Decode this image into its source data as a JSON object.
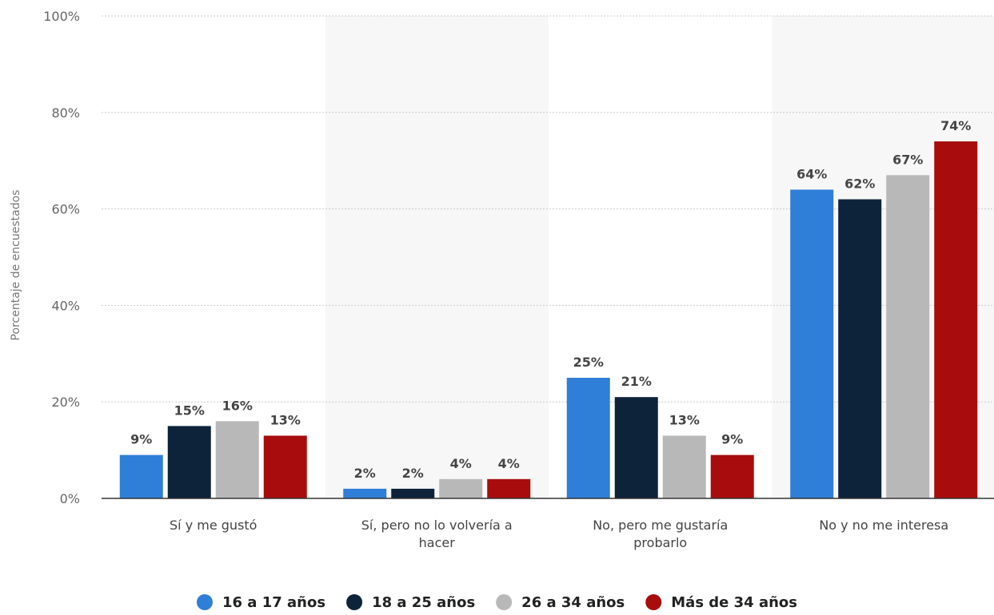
{
  "chart_data": {
    "type": "bar",
    "ylabel": "Porcentaje de encuestados",
    "xlabel": "",
    "ylim": [
      0,
      100
    ],
    "yticks": [
      "0%",
      "20%",
      "40%",
      "60%",
      "80%",
      "100%"
    ],
    "ytick_values": [
      0,
      20,
      40,
      60,
      80,
      100
    ],
    "grid": true,
    "legend_position": "bottom",
    "categories": [
      [
        "Sí y me gustó"
      ],
      [
        "Sí, pero no lo volvería a",
        "hacer"
      ],
      [
        "No, pero me gustaría",
        "probarlo"
      ],
      [
        "No y no me interesa"
      ]
    ],
    "series": [
      {
        "name": "16 a 17 años",
        "color": "#2f7ed8",
        "values": [
          9,
          2,
          25,
          64
        ],
        "labels": [
          "9%",
          "2%",
          "25%",
          "64%"
        ]
      },
      {
        "name": "18 a 25 años",
        "color": "#0d233a",
        "values": [
          15,
          2,
          21,
          62
        ],
        "labels": [
          "15%",
          "2%",
          "21%",
          "62%"
        ]
      },
      {
        "name": "26 a 34 años",
        "color": "#b8b8b8",
        "values": [
          16,
          4,
          13,
          67
        ],
        "labels": [
          "16%",
          "4%",
          "13%",
          "67%"
        ]
      },
      {
        "name": "Más de 34 años",
        "color": "#a80c0c",
        "values": [
          13,
          4,
          9,
          74
        ],
        "labels": [
          "13%",
          "4%",
          "9%",
          "74%"
        ]
      }
    ]
  }
}
